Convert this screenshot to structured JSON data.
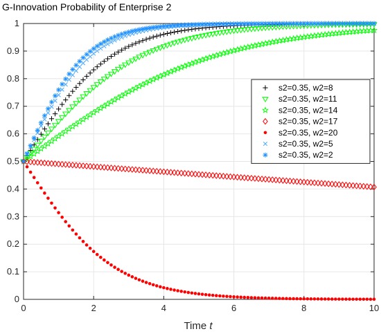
{
  "chart_data": {
    "type": "scatter",
    "title": "G-Innovation Probability of Enterprise 2",
    "xlabel": "Time",
    "xlabel_var": "t",
    "ylabel": "",
    "xlim": [
      0,
      10
    ],
    "ylim": [
      0,
      1
    ],
    "xticks": [
      0,
      2,
      4,
      6,
      8,
      10
    ],
    "yticks": [
      0,
      0.1,
      0.2,
      0.3,
      0.4,
      0.5,
      0.6,
      0.7,
      0.8,
      0.9,
      1
    ],
    "grid": true,
    "legend_position": "right",
    "x_step": 0.1,
    "series": [
      {
        "name": "s2=0.35, w2=8",
        "marker": "plus",
        "color": "#000000",
        "x0": 0,
        "y0": 0.5,
        "rate": 0.8
      },
      {
        "name": "s2=0.35, w2=11",
        "marker": "triangle-down",
        "color": "#00ff00",
        "x0": 0,
        "y0": 0.5,
        "rate": 0.6
      },
      {
        "name": "s2=0.35, w2=14",
        "marker": "pentagram",
        "color": "#00ff00",
        "x0": 0,
        "y0": 0.5,
        "rate": 0.37
      },
      {
        "name": "s2=0.35, w2=17",
        "marker": "diamond",
        "color": "#ff0000",
        "x0": 0,
        "y0": 0.5,
        "rate": -0.0376
      },
      {
        "name": "s2=0.35, w2=20",
        "marker": "dot",
        "color": "#ff0000",
        "x0": 0,
        "y0": 0.5,
        "rate": -0.78
      },
      {
        "name": "s2=0.35, w2=5",
        "marker": "x",
        "color": "#4aa8ff",
        "x0": 0,
        "y0": 0.5,
        "rate": 1.05
      },
      {
        "name": "s2=0.35, w2=2",
        "marker": "asterisk",
        "color": "#1e90ff",
        "x0": 0,
        "y0": 0.5,
        "rate": 1.15
      }
    ]
  }
}
